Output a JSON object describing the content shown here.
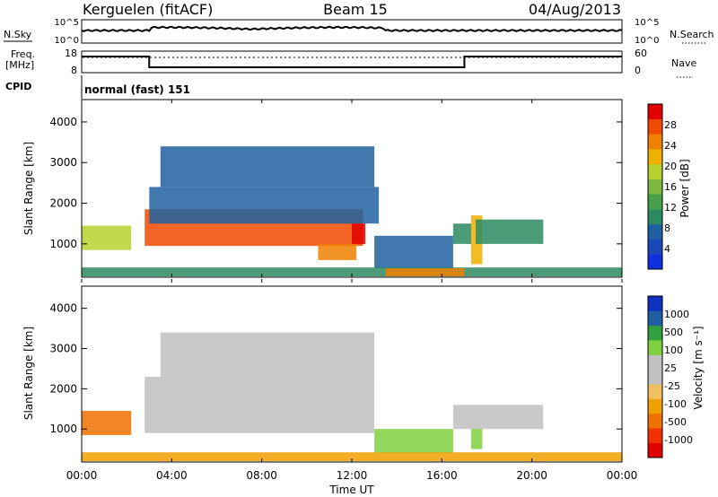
{
  "header": {
    "station": "Kerguelen (fitACF)",
    "beam": "Beam 15",
    "date": "04/Aug/2013"
  },
  "top_panels": {
    "nsky_label": "N.Sky",
    "nsky_ticks": [
      "10^5",
      "10^0"
    ],
    "nsearch_label": "N.Search",
    "nsearch_ticks": [
      "10^5",
      "10^0"
    ],
    "freq_label_1": "Freq.",
    "freq_label_2": "[MHz]",
    "freq_ticks": [
      "18",
      "8"
    ],
    "nave_label": "Nave",
    "nave_ticks": [
      "60",
      "0"
    ],
    "cpid_label": "CPID",
    "cpid_text": "normal (fast) 151",
    "freq_steps": [
      {
        "from": 0.0,
        "to": 3.0,
        "level": 0.25
      },
      {
        "from": 3.0,
        "to": 17.0,
        "level": 0.75
      },
      {
        "from": 17.0,
        "to": 24.0,
        "level": 0.25
      }
    ]
  },
  "colors": {
    "power_scale": [
      "#1030e0",
      "#1a48b8",
      "#2060a0",
      "#2b8a62",
      "#48a04a",
      "#7ab840",
      "#b8d030",
      "#f0b000",
      "#f08000",
      "#f04a00",
      "#e00000"
    ],
    "velocity_scale": [
      "#e00000",
      "#f03000",
      "#f07000",
      "#f0a000",
      "#f0c060",
      "#c0c0c0",
      "#c0c0c0",
      "#80d040",
      "#30a040",
      "#2060a0",
      "#1030c0"
    ]
  },
  "chart_data": [
    {
      "type": "heatmap",
      "title": "",
      "xlabel": "Time UT",
      "ylabel": "Slant Range [km]",
      "x_ticks": [
        "00:00",
        "04:00",
        "08:00",
        "12:00",
        "16:00",
        "20:00",
        "00:00"
      ],
      "xlim_hours": [
        0,
        24
      ],
      "y_ticks": [
        "1000",
        "2000",
        "3000",
        "4000"
      ],
      "ylim_km": [
        180,
        4550
      ],
      "colorbar_label": "Power [dB]",
      "colorbar_ticks": [
        "4",
        "8",
        "12",
        "16",
        "20",
        "24",
        "28"
      ],
      "colorbar_range": [
        0,
        30
      ],
      "regions": [
        {
          "t0": 0.0,
          "t1": 2.2,
          "r0": 850,
          "r1": 1450,
          "value": 18
        },
        {
          "t0": 2.8,
          "t1": 12.5,
          "r0": 950,
          "r1": 1850,
          "value": 26
        },
        {
          "t0": 3.0,
          "t1": 13.2,
          "r0": 1500,
          "r1": 2400,
          "value": 8
        },
        {
          "t0": 3.5,
          "t1": 13.0,
          "r0": 2400,
          "r1": 3400,
          "value": 6
        },
        {
          "t0": 10.5,
          "t1": 12.2,
          "r0": 600,
          "r1": 1000,
          "value": 24
        },
        {
          "t0": 12.0,
          "t1": 12.6,
          "r0": 1000,
          "r1": 1500,
          "value": 28
        },
        {
          "t0": 13.0,
          "t1": 16.5,
          "r0": 400,
          "r1": 1200,
          "value": 6
        },
        {
          "t0": 16.5,
          "t1": 17.3,
          "r0": 1000,
          "r1": 1500,
          "value": 10
        },
        {
          "t0": 17.3,
          "t1": 17.8,
          "r0": 500,
          "r1": 1700,
          "value": 20
        },
        {
          "t0": 17.5,
          "t1": 20.5,
          "r0": 1000,
          "r1": 1600,
          "value": 10
        },
        {
          "t0": 0.0,
          "t1": 24.0,
          "r0": 200,
          "r1": 420,
          "value": 10
        },
        {
          "t0": 13.5,
          "t1": 17.0,
          "r0": 200,
          "r1": 400,
          "value": 22
        }
      ]
    },
    {
      "type": "heatmap",
      "title": "",
      "xlabel": "Time UT",
      "ylabel": "Slant Range [km]",
      "x_ticks": [
        "00:00",
        "04:00",
        "08:00",
        "12:00",
        "16:00",
        "20:00",
        "00:00"
      ],
      "xlim_hours": [
        0,
        24
      ],
      "y_ticks": [
        "1000",
        "2000",
        "3000",
        "4000"
      ],
      "ylim_km": [
        180,
        4550
      ],
      "colorbar_label": "Velocity [m s⁻¹]",
      "colorbar_ticks": [
        "1000",
        "500",
        "100",
        "25",
        "-25",
        "-100",
        "-500",
        "-1000"
      ],
      "regions": [
        {
          "t0": 0.0,
          "t1": 2.2,
          "r0": 850,
          "r1": 1450,
          "value": -300
        },
        {
          "t0": 2.8,
          "t1": 13.0,
          "r0": 900,
          "r1": 2300,
          "value": 0
        },
        {
          "t0": 3.5,
          "t1": 13.0,
          "r0": 2300,
          "r1": 3400,
          "value": 0
        },
        {
          "t0": 13.0,
          "t1": 16.5,
          "r0": 400,
          "r1": 1000,
          "value": 60
        },
        {
          "t0": 16.5,
          "t1": 20.5,
          "r0": 1000,
          "r1": 1600,
          "value": 0
        },
        {
          "t0": 17.3,
          "t1": 17.8,
          "r0": 500,
          "r1": 1000,
          "value": 60
        },
        {
          "t0": 0.0,
          "t1": 24.0,
          "r0": 200,
          "r1": 420,
          "value": -60
        }
      ]
    }
  ]
}
